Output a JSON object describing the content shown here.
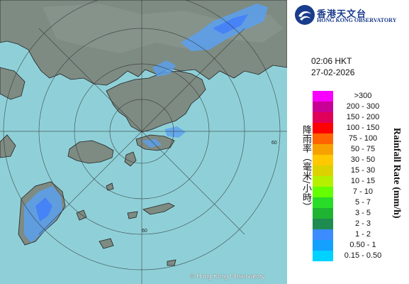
{
  "header": {
    "org_cn": "香港天文台",
    "org_en": "HONG KONG OBSERVATORY",
    "logo_icon": "hko-logo-icon"
  },
  "time": "02:06 HKT",
  "date": "27-02-2026",
  "map": {
    "copyright": "© Hong Kong Observatory",
    "range_ring_labels": [
      "60",
      "60"
    ],
    "colors": {
      "sea": "#8fd0d8",
      "land": "#7d8a80"
    }
  },
  "legend": {
    "title_cn": "降雨率（毫米/小時）",
    "title_en": "Rainfall Rate (mm/h)",
    "items": [
      {
        "label": ">300",
        "color": "#f700ff"
      },
      {
        "label": "200 - 300",
        "color": "#c80096"
      },
      {
        "label": "150 - 200",
        "color": "#e0005a"
      },
      {
        "label": "100 - 150",
        "color": "#ff0000"
      },
      {
        "label": "75 - 100",
        "color": "#ff6400"
      },
      {
        "label": "50 - 75",
        "color": "#f7a100"
      },
      {
        "label": "30 - 50",
        "color": "#ffc800"
      },
      {
        "label": "15 - 30",
        "color": "#dcd200"
      },
      {
        "label": "10 - 15",
        "color": "#b4f000"
      },
      {
        "label": "7 - 10",
        "color": "#64ff00"
      },
      {
        "label": "5 - 7",
        "color": "#28dc28"
      },
      {
        "label": "3 - 5",
        "color": "#1eb432"
      },
      {
        "label": "2 - 3",
        "color": "#1e8c50"
      },
      {
        "label": "1 - 2",
        "color": "#3c8cff"
      },
      {
        "label": "0.50 - 1",
        "color": "#14a0ff"
      },
      {
        "label": "0.15 - 0.50",
        "color": "#00d2ff"
      }
    ]
  }
}
